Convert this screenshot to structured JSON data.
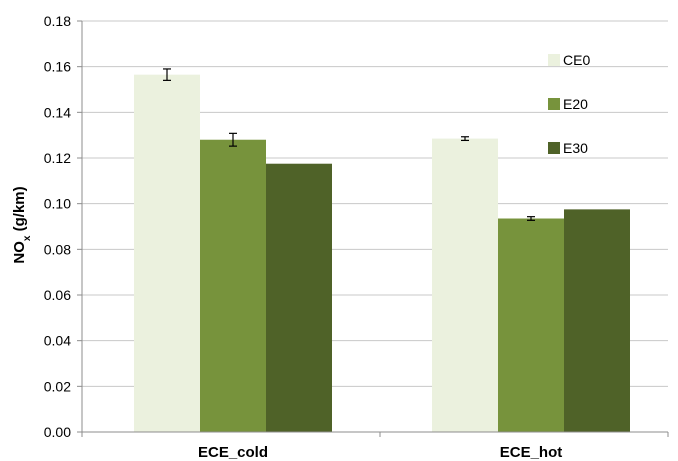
{
  "chart_data": {
    "type": "bar",
    "categories": [
      "ECE_cold",
      "ECE_hot"
    ],
    "series": [
      {
        "name": "CE0",
        "values": [
          0.1565,
          0.1285
        ],
        "errors": [
          0.0025,
          0.0008
        ],
        "color": "#ebf1de"
      },
      {
        "name": "E20",
        "values": [
          0.128,
          0.0935
        ],
        "errors": [
          0.0028,
          0.0008
        ],
        "color": "#77933c"
      },
      {
        "name": "E30",
        "values": [
          0.1175,
          0.0975
        ],
        "errors": [
          null,
          null
        ],
        "color": "#4f6228"
      }
    ],
    "ylabel": {
      "main": "NO",
      "sub": "x",
      "rest": " (g/km)"
    },
    "ylim": [
      0,
      0.18
    ],
    "yticks": [
      "0.00",
      "0.02",
      "0.04",
      "0.06",
      "0.08",
      "0.10",
      "0.12",
      "0.14",
      "0.16",
      "0.18"
    ],
    "grid": true,
    "legend_position": "right"
  }
}
